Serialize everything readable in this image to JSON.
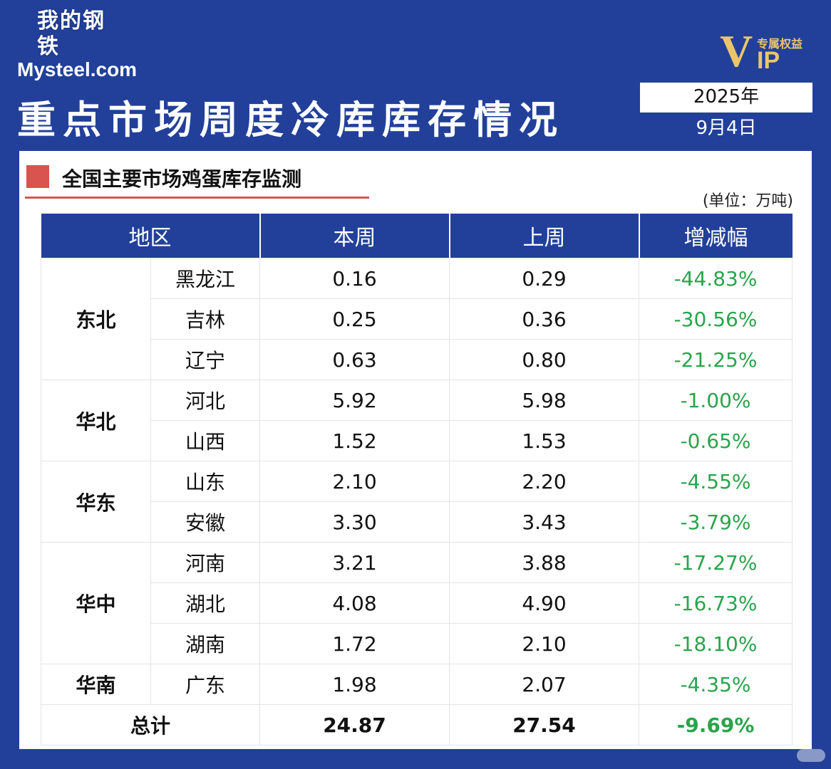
{
  "brand": {
    "logo_cn": "我的钢铁",
    "logo_en": "Mysteel.com",
    "vip_label": "VIP",
    "vip_tag": "专属权益"
  },
  "header": {
    "title": "重点市场周度冷库库存情况",
    "date_year": "2025年",
    "date_day": "9月4日"
  },
  "section": {
    "heading": "全国主要市场鸡蛋库存监测",
    "unit": "(单位：万吨)"
  },
  "table": {
    "columns": [
      "地区",
      "本周",
      "上周",
      "增减幅"
    ],
    "groups": [
      {
        "region": "东北",
        "rows": [
          {
            "province": "黑龙江",
            "this_week": "0.16",
            "last_week": "0.29",
            "change": "-44.83%"
          },
          {
            "province": "吉林",
            "this_week": "0.25",
            "last_week": "0.36",
            "change": "-30.56%"
          },
          {
            "province": "辽宁",
            "this_week": "0.63",
            "last_week": "0.80",
            "change": "-21.25%"
          }
        ]
      },
      {
        "region": "华北",
        "rows": [
          {
            "province": "河北",
            "this_week": "5.92",
            "last_week": "5.98",
            "change": "-1.00%"
          },
          {
            "province": "山西",
            "this_week": "1.52",
            "last_week": "1.53",
            "change": "-0.65%"
          }
        ]
      },
      {
        "region": "华东",
        "rows": [
          {
            "province": "山东",
            "this_week": "2.10",
            "last_week": "2.20",
            "change": "-4.55%"
          },
          {
            "province": "安徽",
            "this_week": "3.30",
            "last_week": "3.43",
            "change": "-3.79%"
          }
        ]
      },
      {
        "region": "华中",
        "rows": [
          {
            "province": "河南",
            "this_week": "3.21",
            "last_week": "3.88",
            "change": "-17.27%"
          },
          {
            "province": "湖北",
            "this_week": "4.08",
            "last_week": "4.90",
            "change": "-16.73%"
          },
          {
            "province": "湖南",
            "this_week": "1.72",
            "last_week": "2.10",
            "change": "-18.10%"
          }
        ]
      },
      {
        "region": "华南",
        "rows": [
          {
            "province": "广东",
            "this_week": "1.98",
            "last_week": "2.07",
            "change": "-4.35%"
          }
        ]
      }
    ],
    "total": {
      "label": "总计",
      "this_week": "24.87",
      "last_week": "27.54",
      "change": "-9.69%"
    }
  },
  "colors": {
    "brand_blue": "#22409a",
    "accent_red": "#d9534f",
    "change_green": "#2aa44c",
    "vip_gold": "#e9c66a"
  }
}
